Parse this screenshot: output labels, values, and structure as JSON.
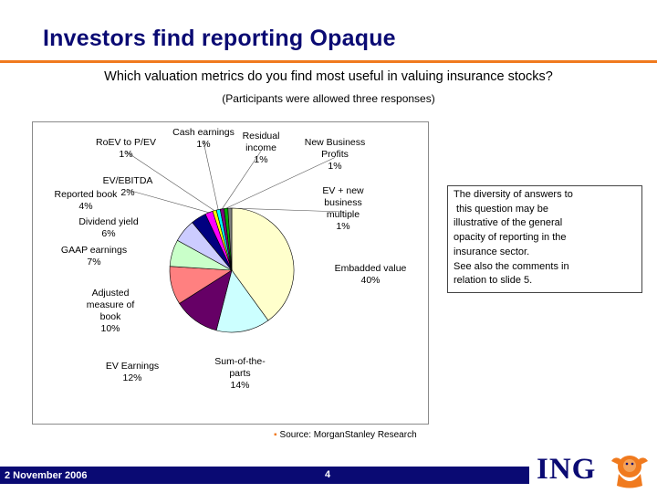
{
  "title": "Investors find reporting Opaque",
  "question": "Which valuation metrics do you find most useful in valuing insurance stocks?",
  "subquestion": "(Participants were allowed three responses)",
  "note_lines": [
    "The diversity of answers to",
    " this question may be",
    "illustrative of the general",
    "opacity of reporting in the",
    "insurance sector.",
    "See also the comments in",
    "relation to slide 5."
  ],
  "source": "Source: MorganStanley Research",
  "footer": {
    "date": "2 November 2006",
    "page": "4"
  },
  "logo": {
    "text": "ING"
  },
  "colors": {
    "title": "#0a0a73",
    "accent": "#f07a1e",
    "footer": "#0a0a73"
  },
  "chart_data": {
    "type": "pie",
    "start": "top",
    "direction": "clockwise",
    "slices": [
      {
        "label_lines": [
          "Embadded value",
          "40%"
        ],
        "value": 40,
        "color": "#ffffcc"
      },
      {
        "label_lines": [
          "Sum-of-the-",
          "parts",
          "14%"
        ],
        "value": 14,
        "color": "#ccffff"
      },
      {
        "label_lines": [
          "EV Earnings",
          "12%"
        ],
        "value": 12,
        "color": "#660066"
      },
      {
        "label_lines": [
          "Adjusted",
          "measure of",
          "book",
          "10%"
        ],
        "value": 10,
        "color": "#ff8080"
      },
      {
        "label_lines": [
          "GAAP earnings",
          "7%"
        ],
        "value": 7,
        "color": "#c9ffc9"
      },
      {
        "label_lines": [
          "Dividend yield",
          "6%"
        ],
        "value": 6,
        "color": "#ccccff"
      },
      {
        "label_lines": [
          "Reported book",
          "4%"
        ],
        "value": 4,
        "color": "#000080"
      },
      {
        "label_lines": [
          "EV/EBITDA",
          "2%"
        ],
        "value": 2,
        "color": "#ff00ff"
      },
      {
        "label_lines": [
          "RoEV to P/EV",
          "1%"
        ],
        "value": 1,
        "color": "#ffff00"
      },
      {
        "label_lines": [
          "Cash earnings",
          "1%"
        ],
        "value": 1,
        "color": "#00ffff"
      },
      {
        "label_lines": [
          "Residual",
          "income",
          "1%"
        ],
        "value": 1,
        "color": "#800080"
      },
      {
        "label_lines": [
          "New Business",
          "Profits",
          "1%"
        ],
        "value": 1,
        "color": "#00aa00"
      },
      {
        "label_lines": [
          "EV + new",
          "business",
          "multiple",
          "1%"
        ],
        "value": 1,
        "color": "#808080"
      }
    ]
  }
}
